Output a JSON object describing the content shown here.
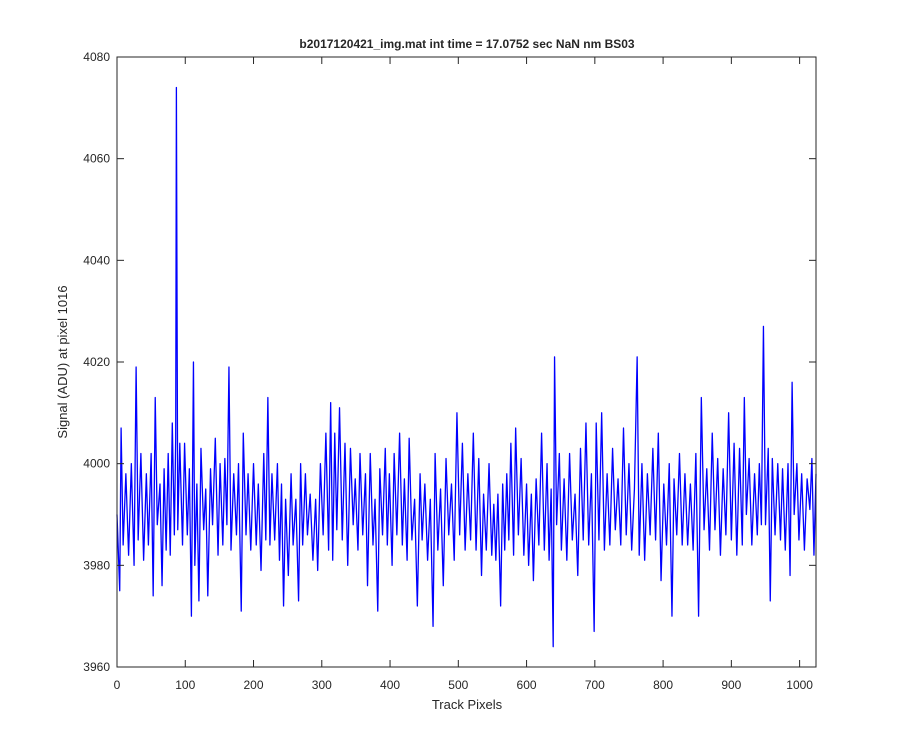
{
  "chart_data": {
    "type": "line",
    "title": "b2017120421_img.mat int time = 17.0752 sec  NaN nm BS03",
    "xlabel": "Track Pixels",
    "ylabel": "Signal (ADU) at pixel 1016",
    "xlim": [
      0,
      1024
    ],
    "ylim": [
      3960,
      4080
    ],
    "xticks": [
      0,
      100,
      200,
      300,
      400,
      500,
      600,
      700,
      800,
      900,
      1000
    ],
    "yticks": [
      3960,
      3980,
      4000,
      4020,
      4040,
      4060,
      4080
    ],
    "grid": false,
    "legend": "none",
    "line_color": "#0000ff",
    "series": [
      {
        "points": [
          [
            0,
            3990
          ],
          [
            4,
            3975
          ],
          [
            6,
            4007
          ],
          [
            9,
            3984
          ],
          [
            13,
            3998
          ],
          [
            17,
            3982
          ],
          [
            21,
            4000
          ],
          [
            25,
            3980
          ],
          [
            28,
            4019
          ],
          [
            31,
            3985
          ],
          [
            35,
            4002
          ],
          [
            39,
            3981
          ],
          [
            43,
            3998
          ],
          [
            46,
            3984
          ],
          [
            50,
            4002
          ],
          [
            53,
            3974
          ],
          [
            56,
            4013
          ],
          [
            59,
            3988
          ],
          [
            63,
            3996
          ],
          [
            66,
            3976
          ],
          [
            69,
            3999
          ],
          [
            72,
            3983
          ],
          [
            75,
            4002
          ],
          [
            78,
            3982
          ],
          [
            81,
            4008
          ],
          [
            84,
            3986
          ],
          [
            86,
            4005
          ],
          [
            87,
            4074
          ],
          [
            89,
            3987
          ],
          [
            92,
            4004
          ],
          [
            96,
            3984
          ],
          [
            99,
            4004
          ],
          [
            103,
            3986
          ],
          [
            106,
            3999
          ],
          [
            109,
            3970
          ],
          [
            112,
            4020
          ],
          [
            114,
            3980
          ],
          [
            117,
            3996
          ],
          [
            120,
            3973
          ],
          [
            123,
            4003
          ],
          [
            127,
            3987
          ],
          [
            130,
            3995
          ],
          [
            133,
            3974
          ],
          [
            137,
            3999
          ],
          [
            140,
            3988
          ],
          [
            144,
            4005
          ],
          [
            148,
            3982
          ],
          [
            151,
            4000
          ],
          [
            155,
            3984
          ],
          [
            158,
            4001
          ],
          [
            161,
            3988
          ],
          [
            164,
            4019
          ],
          [
            167,
            3983
          ],
          [
            171,
            3998
          ],
          [
            175,
            3986
          ],
          [
            178,
            4000
          ],
          [
            182,
            3971
          ],
          [
            185,
            4006
          ],
          [
            189,
            3986
          ],
          [
            192,
            3998
          ],
          [
            196,
            3983
          ],
          [
            200,
            4000
          ],
          [
            204,
            3984
          ],
          [
            207,
            3996
          ],
          [
            211,
            3979
          ],
          [
            215,
            4002
          ],
          [
            218,
            3985
          ],
          [
            221,
            4013
          ],
          [
            224,
            3984
          ],
          [
            227,
            3998
          ],
          [
            231,
            3985
          ],
          [
            235,
            4000
          ],
          [
            238,
            3981
          ],
          [
            241,
            3996
          ],
          [
            244,
            3972
          ],
          [
            247,
            3993
          ],
          [
            251,
            3978
          ],
          [
            255,
            3998
          ],
          [
            258,
            3984
          ],
          [
            262,
            3993
          ],
          [
            266,
            3973
          ],
          [
            269,
            4000
          ],
          [
            272,
            3984
          ],
          [
            276,
            3998
          ],
          [
            279,
            3986
          ],
          [
            283,
            3994
          ],
          [
            287,
            3981
          ],
          [
            291,
            3993
          ],
          [
            294,
            3979
          ],
          [
            298,
            4000
          ],
          [
            302,
            3986
          ],
          [
            306,
            4006
          ],
          [
            310,
            3983
          ],
          [
            313,
            4012
          ],
          [
            316,
            3981
          ],
          [
            319,
            4006
          ],
          [
            322,
            3987
          ],
          [
            326,
            4011
          ],
          [
            330,
            3985
          ],
          [
            334,
            4004
          ],
          [
            338,
            3980
          ],
          [
            342,
            4003
          ],
          [
            346,
            3988
          ],
          [
            349,
            3997
          ],
          [
            353,
            3983
          ],
          [
            356,
            4002
          ],
          [
            360,
            3986
          ],
          [
            364,
            3998
          ],
          [
            367,
            3976
          ],
          [
            371,
            4002
          ],
          [
            375,
            3984
          ],
          [
            378,
            3993
          ],
          [
            382,
            3971
          ],
          [
            385,
            3999
          ],
          [
            389,
            3986
          ],
          [
            393,
            4003
          ],
          [
            396,
            3984
          ],
          [
            399,
            3998
          ],
          [
            403,
            3980
          ],
          [
            406,
            4002
          ],
          [
            410,
            3986
          ],
          [
            414,
            4006
          ],
          [
            418,
            3984
          ],
          [
            421,
            3997
          ],
          [
            425,
            3981
          ],
          [
            428,
            4005
          ],
          [
            432,
            3985
          ],
          [
            436,
            3993
          ],
          [
            440,
            3972
          ],
          [
            444,
            3998
          ],
          [
            447,
            3985
          ],
          [
            451,
            3996
          ],
          [
            455,
            3981
          ],
          [
            459,
            3993
          ],
          [
            463,
            3968
          ],
          [
            466,
            4002
          ],
          [
            470,
            3983
          ],
          [
            474,
            3995
          ],
          [
            478,
            3976
          ],
          [
            482,
            4001
          ],
          [
            486,
            3986
          ],
          [
            490,
            3996
          ],
          [
            494,
            3981
          ],
          [
            498,
            4010
          ],
          [
            502,
            3986
          ],
          [
            506,
            4004
          ],
          [
            510,
            3983
          ],
          [
            514,
            3998
          ],
          [
            518,
            3985
          ],
          [
            522,
            4006
          ],
          [
            526,
            3983
          ],
          [
            530,
            4001
          ],
          [
            534,
            3978
          ],
          [
            537,
            3994
          ],
          [
            541,
            3983
          ],
          [
            545,
            4000
          ],
          [
            549,
            3982
          ],
          [
            552,
            3992
          ],
          [
            555,
            3981
          ],
          [
            558,
            3994
          ],
          [
            562,
            3972
          ],
          [
            565,
            3996
          ],
          [
            568,
            3983
          ],
          [
            571,
            3998
          ],
          [
            574,
            3985
          ],
          [
            577,
            4004
          ],
          [
            581,
            3982
          ],
          [
            584,
            4007
          ],
          [
            588,
            3986
          ],
          [
            592,
            4001
          ],
          [
            596,
            3982
          ],
          [
            600,
            3996
          ],
          [
            603,
            3980
          ],
          [
            607,
            3994
          ],
          [
            610,
            3977
          ],
          [
            614,
            3997
          ],
          [
            618,
            3984
          ],
          [
            622,
            4006
          ],
          [
            626,
            3983
          ],
          [
            630,
            4000
          ],
          [
            633,
            3981
          ],
          [
            636,
            3995
          ],
          [
            639,
            3964
          ],
          [
            641,
            4021
          ],
          [
            644,
            3988
          ],
          [
            648,
            4002
          ],
          [
            651,
            3983
          ],
          [
            655,
            3997
          ],
          [
            659,
            3981
          ],
          [
            663,
            4002
          ],
          [
            667,
            3985
          ],
          [
            671,
            3994
          ],
          [
            675,
            3978
          ],
          [
            679,
            4003
          ],
          [
            683,
            3985
          ],
          [
            687,
            4008
          ],
          [
            691,
            3984
          ],
          [
            695,
            3998
          ],
          [
            699,
            3967
          ],
          [
            702,
            4008
          ],
          [
            706,
            3985
          ],
          [
            710,
            4010
          ],
          [
            714,
            3983
          ],
          [
            718,
            3998
          ],
          [
            722,
            3984
          ],
          [
            726,
            4003
          ],
          [
            730,
            3987
          ],
          [
            734,
            3997
          ],
          [
            738,
            3984
          ],
          [
            742,
            4007
          ],
          [
            746,
            3986
          ],
          [
            750,
            4000
          ],
          [
            754,
            3983
          ],
          [
            758,
            3995
          ],
          [
            762,
            4021
          ],
          [
            765,
            3982
          ],
          [
            769,
            4000
          ],
          [
            773,
            3981
          ],
          [
            777,
            3998
          ],
          [
            781,
            3986
          ],
          [
            785,
            4003
          ],
          [
            789,
            3985
          ],
          [
            793,
            4006
          ],
          [
            797,
            3977
          ],
          [
            801,
            3996
          ],
          [
            805,
            3984
          ],
          [
            809,
            4000
          ],
          [
            813,
            3970
          ],
          [
            816,
            3997
          ],
          [
            820,
            3986
          ],
          [
            824,
            4002
          ],
          [
            828,
            3984
          ],
          [
            832,
            3998
          ],
          [
            836,
            3984
          ],
          [
            840,
            3996
          ],
          [
            844,
            3983
          ],
          [
            848,
            4002
          ],
          [
            852,
            3970
          ],
          [
            856,
            4013
          ],
          [
            860,
            3987
          ],
          [
            864,
            3999
          ],
          [
            868,
            3983
          ],
          [
            872,
            4006
          ],
          [
            876,
            3987
          ],
          [
            880,
            4001
          ],
          [
            884,
            3982
          ],
          [
            888,
            3999
          ],
          [
            892,
            3986
          ],
          [
            896,
            4010
          ],
          [
            900,
            3985
          ],
          [
            904,
            4004
          ],
          [
            908,
            3982
          ],
          [
            912,
            4003
          ],
          [
            916,
            3984
          ],
          [
            919,
            4013
          ],
          [
            922,
            3990
          ],
          [
            926,
            4001
          ],
          [
            930,
            3984
          ],
          [
            934,
            3998
          ],
          [
            938,
            3986
          ],
          [
            941,
            4000
          ],
          [
            944,
            3988
          ],
          [
            947,
            4027
          ],
          [
            950,
            3988
          ],
          [
            954,
            4003
          ],
          [
            957,
            3973
          ],
          [
            960,
            4001
          ],
          [
            964,
            3986
          ],
          [
            968,
            4000
          ],
          [
            972,
            3985
          ],
          [
            975,
            3999
          ],
          [
            979,
            3983
          ],
          [
            983,
            4000
          ],
          [
            986,
            3978
          ],
          [
            989,
            4016
          ],
          [
            992,
            3990
          ],
          [
            996,
            4000
          ],
          [
            999,
            3985
          ],
          [
            1003,
            3998
          ],
          [
            1007,
            3983
          ],
          [
            1011,
            3997
          ],
          [
            1015,
            3991
          ],
          [
            1018,
            4001
          ],
          [
            1021,
            3982
          ],
          [
            1024,
            3998
          ]
        ]
      }
    ]
  }
}
